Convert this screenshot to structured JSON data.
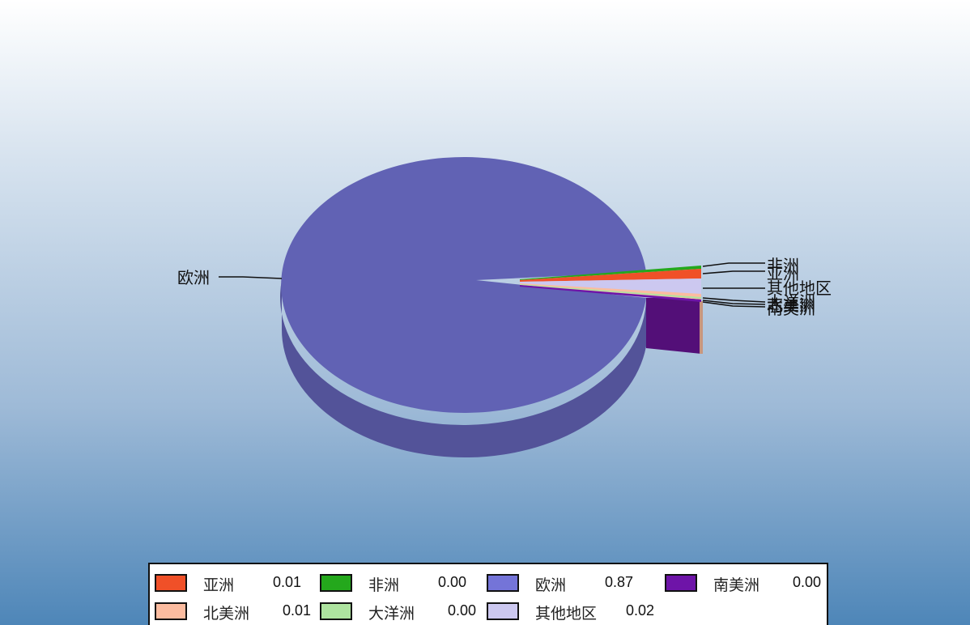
{
  "chart_data": {
    "type": "pie",
    "style": "3d",
    "categories": [
      "亚洲",
      "非洲",
      "欧洲",
      "南美洲",
      "北美洲",
      "大洋洲",
      "其他地区"
    ],
    "values": [
      0.01,
      0.0,
      0.87,
      0.0,
      0.01,
      0.0,
      0.02
    ],
    "colors": [
      "#f05028",
      "#24a81c",
      "#7474d8",
      "#6e14a8",
      "#fcbca0",
      "#aee4a0",
      "#ccc8f0"
    ],
    "legend_placement": "bottom",
    "title": ""
  },
  "legend": {
    "items": [
      {
        "name": "亚洲",
        "value": "0.01"
      },
      {
        "name": "非洲",
        "value": "0.00"
      },
      {
        "name": "欧洲",
        "value": "0.87"
      },
      {
        "name": "南美洲",
        "value": "0.00"
      },
      {
        "name": "北美洲",
        "value": "0.01"
      },
      {
        "name": "大洋洲",
        "value": "0.00"
      },
      {
        "name": "其他地区",
        "value": "0.02"
      }
    ]
  }
}
